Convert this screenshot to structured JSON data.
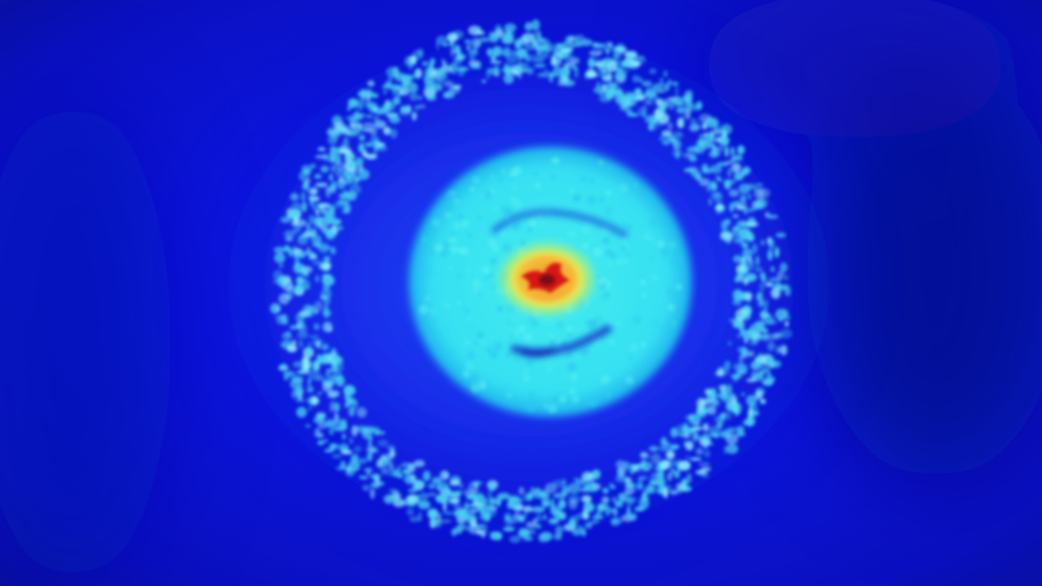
{
  "image": {
    "colormap": "jet",
    "colors": {
      "background": "#0a10c8",
      "background_dark": "#071190",
      "ring": "#49d4f0",
      "ring_highlight": "#8ef4ff",
      "halo": "#1b3cf0",
      "disk": "#39e6f0",
      "disk_edge": "#1fb8ee",
      "core_yellow": "#f4e94a",
      "core_orange": "#f49a2c",
      "core_red": "#e6221a",
      "core_dark": "#7a0a12"
    }
  }
}
